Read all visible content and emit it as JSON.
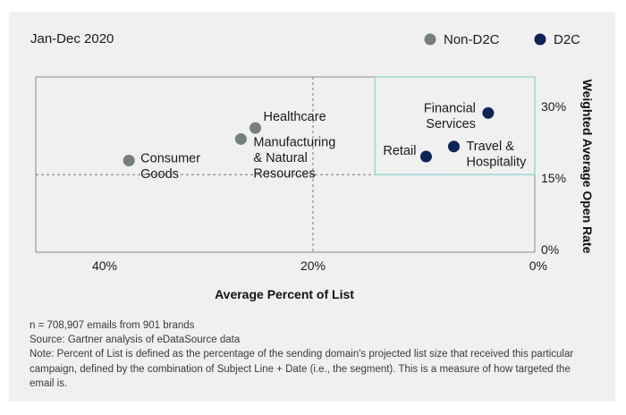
{
  "chart_data": {
    "type": "scatter",
    "title": "Jan-Dec 2020",
    "xlabel": "Average Percent of List",
    "ylabel": "Weighted Average Open Rate",
    "x_reversed": true,
    "xlim": [
      0,
      45
    ],
    "ylim": [
      0,
      35
    ],
    "x_ticks": [
      40,
      20,
      0
    ],
    "x_tick_labels": [
      "40%",
      "20%",
      "0%"
    ],
    "y_ticks": [
      30,
      15,
      0
    ],
    "y_tick_labels": [
      "30%",
      "15%",
      "0%"
    ],
    "x_divider": 20,
    "y_divider": 15.5,
    "highlight_region": {
      "x": [
        0,
        14.4
      ],
      "y": [
        15.5,
        35
      ]
    },
    "legend": {
      "position": "top-right",
      "entries": [
        {
          "name": "Non-D2C",
          "color": "#76807b"
        },
        {
          "name": "D2C",
          "color": "#0f2456"
        }
      ]
    },
    "series": [
      {
        "name": "Non-D2C",
        "color": "#76807b",
        "points": [
          {
            "label": [
              "Consumer",
              "Goods"
            ],
            "x": 36.6,
            "y": 18.3
          },
          {
            "label": [
              "Healthcare"
            ],
            "x": 25.2,
            "y": 24.8
          },
          {
            "label": [
              "Manufacturing",
              "& Natural",
              "Resources"
            ],
            "x": 26.5,
            "y": 22.6
          }
        ]
      },
      {
        "name": "D2C",
        "color": "#0f2456",
        "points": [
          {
            "label": [
              "Financial",
              "Services"
            ],
            "x": 4.2,
            "y": 27.8
          },
          {
            "label": [
              "Retail"
            ],
            "x": 9.8,
            "y": 19.1
          },
          {
            "label": [
              "Travel &",
              "Hospitality"
            ],
            "x": 7.3,
            "y": 21.1
          }
        ]
      }
    ]
  },
  "notes": [
    "n = 708,907 emails from 901 brands",
    "Source: Gartner analysis of eDataSource data",
    "Note: Percent of List is defined as the percentage of the sending domain's projected list size that received this particular campaign, defined by the combination of Subject Line + Date (i.e., the segment). This is a measure of how targeted the email is."
  ],
  "colors": {
    "background": "#f0f0f0",
    "highlight": "#9dd8d2",
    "axis": "#8a8a8a"
  }
}
